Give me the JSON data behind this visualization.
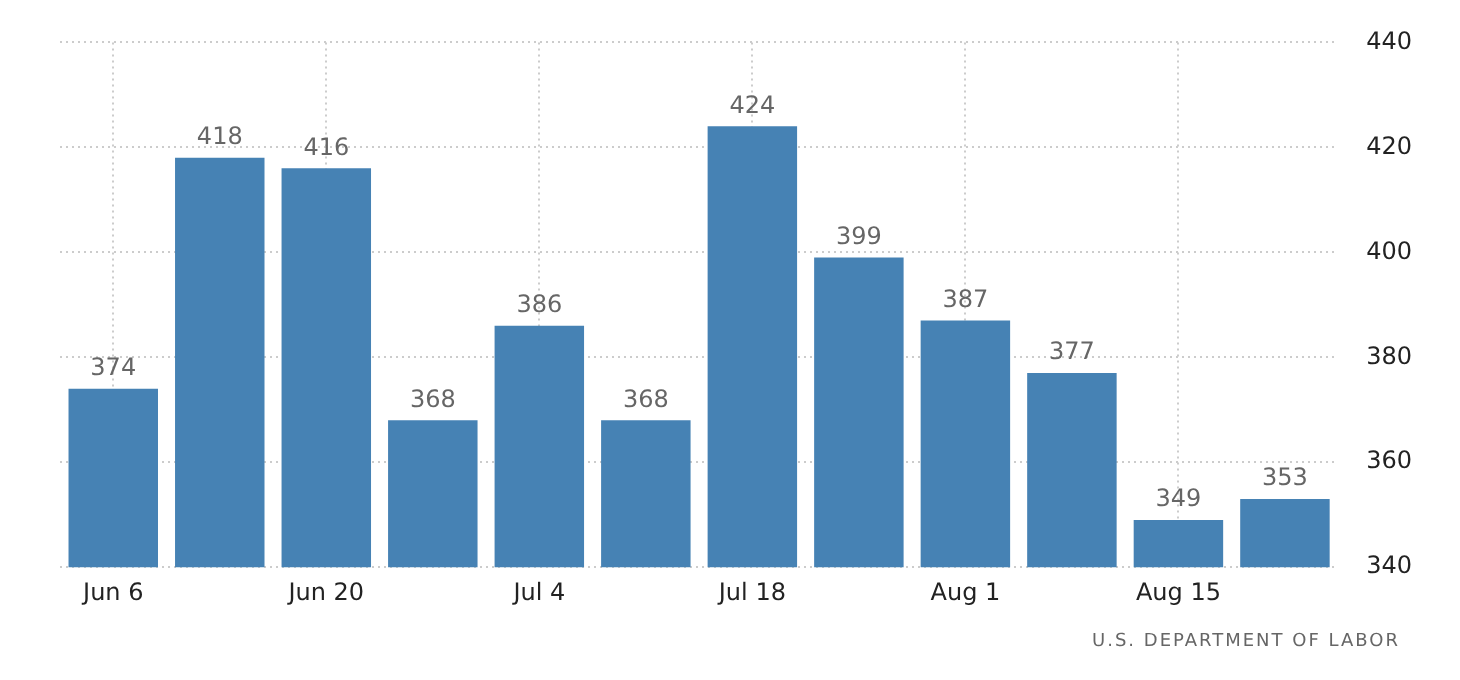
{
  "chart_data": {
    "type": "bar",
    "categories": [
      "Jun 6",
      null,
      "Jun 20",
      null,
      "Jul 4",
      null,
      "Jul 18",
      null,
      "Aug 1",
      null,
      "Aug 15",
      null
    ],
    "values": [
      374,
      418,
      416,
      368,
      386,
      368,
      424,
      399,
      387,
      377,
      349,
      353
    ],
    "color": "#4682b4",
    "ylim": [
      340,
      440
    ],
    "yticks": [
      340,
      360,
      380,
      400,
      420,
      440
    ],
    "grid": true,
    "legend": false,
    "data_labels": true,
    "annotations": [
      "U.S. DEPARTMENT OF LABOR"
    ]
  }
}
